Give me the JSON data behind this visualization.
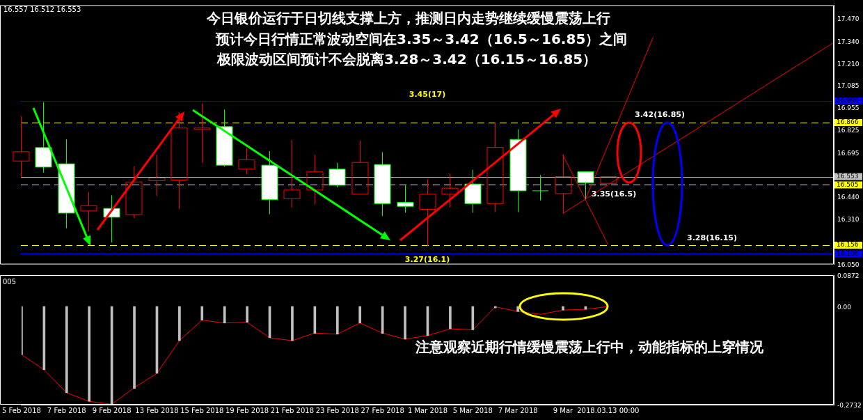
{
  "chart_data": [
    {
      "type": "candlestick",
      "title": "今日银价运行于日切线支撑上方，推测日内走势继续缓慢震荡上行",
      "subtitle": "预计今日行情正常波动空间在3.35～3.42（16.5～16.85）之间",
      "categories": [
        "5 Feb 2018",
        null,
        "7 Feb 2018",
        null,
        "9 Feb 2018",
        null,
        "13 Feb 2018",
        null,
        "15 Feb 2018",
        null,
        "19 Feb 2018",
        null,
        "21 Feb 2018",
        null,
        "23 Feb 2018",
        null,
        "27 Feb 2018",
        null,
        "1 Mar 2018",
        null,
        "5 Mar 2018",
        null,
        "7 Mar 2018",
        null,
        "9 Mar",
        null,
        "2018.03.13 00:00",
        null,
        null,
        null,
        null,
        null,
        null,
        null,
        null,
        null,
        null
      ],
      "ohlc": [
        [
          16.643,
          16.902,
          16.543,
          16.697
        ],
        [
          16.721,
          16.984,
          16.576,
          16.608
        ],
        [
          16.627,
          16.769,
          16.254,
          16.342
        ],
        [
          16.354,
          16.464,
          16.235,
          16.385
        ],
        [
          16.369,
          16.445,
          16.172,
          16.318
        ],
        [
          16.334,
          16.613,
          16.313,
          16.522
        ],
        [
          16.529,
          16.679,
          16.442,
          16.545
        ],
        [
          16.533,
          16.925,
          16.364,
          16.834
        ],
        [
          16.826,
          16.976,
          16.633,
          16.834
        ],
        [
          16.842,
          16.941,
          16.611,
          16.619
        ],
        [
          16.596,
          16.722,
          16.567,
          16.65
        ],
        [
          16.619,
          16.7,
          16.336,
          16.42
        ],
        [
          16.424,
          16.765,
          16.375,
          16.475
        ],
        [
          16.475,
          16.679,
          16.391,
          16.58
        ],
        [
          16.596,
          16.632,
          16.491,
          16.503
        ],
        [
          16.451,
          16.762,
          16.451,
          16.635
        ],
        [
          16.623,
          16.695,
          16.325,
          16.397
        ],
        [
          16.404,
          16.503,
          16.344,
          16.381
        ],
        [
          16.364,
          16.538,
          16.15,
          16.451
        ],
        [
          16.451,
          16.57,
          16.375,
          16.486
        ],
        [
          16.51,
          16.593,
          16.344,
          16.397
        ],
        [
          16.397,
          16.864,
          16.348,
          16.722
        ],
        [
          16.768,
          16.827,
          16.348,
          16.471
        ],
        [
          16.471,
          16.562,
          16.415,
          16.471
        ],
        [
          16.455,
          16.682,
          16.34,
          16.553
        ],
        [
          16.582,
          16.582,
          16.424,
          16.518
        ],
        [
          16.514,
          16.557,
          16.512,
          16.553
        ],
        null,
        null,
        null,
        null,
        null,
        null,
        null,
        null,
        null,
        null
      ],
      "colors": [
        "#ff0000",
        "#ffffff",
        "#ffffff",
        "#ff0000",
        "#ffffff",
        "#ff0000",
        "#ff0000",
        "#ff0000",
        "#ff0000",
        "#ffffff",
        "#ff0000",
        "#ffffff",
        "#ff0000",
        "#ff0000",
        "#ffffff",
        "#ff0000",
        "#ffffff",
        "#ffffff",
        "#ff0000",
        "#ff0000",
        "#ffffff",
        "#ff0000",
        "#ffffff",
        "#00ff00",
        "#ff0000",
        "#ffffff",
        "#ff0000",
        null,
        null,
        null,
        null,
        null,
        null,
        null,
        null,
        null,
        null
      ],
      "series": [
        {
          "type": "line",
          "color": "#ff0000",
          "values": [
            null,
            null,
            null,
            null,
            null,
            null,
            null,
            null,
            null,
            null,
            null,
            null,
            null,
            null,
            null,
            null,
            null,
            null,
            null,
            null,
            null,
            null,
            null,
            null,
            16.34,
            null,
            null,
            null,
            null,
            null,
            null,
            null,
            null,
            null,
            null,
            null,
            17.329
          ]
        },
        {
          "type": "line",
          "color": "#ff0000",
          "values": [
            null,
            null,
            null,
            null,
            null,
            null,
            null,
            null,
            null,
            null,
            null,
            null,
            null,
            null,
            null,
            null,
            null,
            null,
            null,
            null,
            null,
            null,
            null,
            null,
            null,
            16.421,
            null,
            null,
            17.359,
            null,
            null,
            null,
            null,
            null,
            null,
            null,
            null
          ]
        },
        {
          "type": "line",
          "color": "#ff0000",
          "values": [
            null,
            null,
            null,
            null,
            null,
            null,
            null,
            null,
            null,
            null,
            null,
            null,
            null,
            null,
            null,
            null,
            null,
            null,
            null,
            null,
            null,
            null,
            null,
            null,
            16.679,
            null,
            16.16,
            null,
            null,
            null,
            null,
            null,
            null,
            null,
            null,
            null,
            null
          ]
        }
      ],
      "ylim": [
        16.045,
        17.545
      ],
      "yticks": [
        {
          "value": 16.05,
          "label": "16.050"
        },
        {
          "value": 16.31,
          "label": "16.310"
        },
        {
          "value": 16.44,
          "label": "16.440"
        },
        {
          "value": 16.695,
          "label": "16.695"
        },
        {
          "value": 16.825,
          "label": "16.825"
        },
        {
          "value": 16.955,
          "label": "16.955"
        },
        {
          "value": 17.085,
          "label": "17.085"
        },
        {
          "value": 17.21,
          "label": "17.210"
        },
        {
          "value": 17.34,
          "label": "17.340"
        },
        {
          "value": 17.47,
          "label": "17.470"
        }
      ],
      "tick_labels": "y",
      "ref_lines": [
        {
          "axis": "y",
          "value": 16.99,
          "label": "16.990",
          "color": "#0000ff",
          "line_style": "solid"
        },
        {
          "axis": "y",
          "value": 16.866,
          "label": "16.866",
          "color": "#ffff00",
          "line_style": "dashed"
        },
        {
          "axis": "y",
          "value": 16.553,
          "label": "16.553",
          "color": "#c0c0c0",
          "line_style": "solid"
        },
        {
          "axis": "y",
          "value": 16.505,
          "label": "16.505",
          "color": "#ffff00",
          "line_style": "dashed"
        },
        {
          "axis": "y",
          "value": 16.156,
          "label": "16.156",
          "color": "#ffff00",
          "line_style": "dashed"
        },
        {
          "axis": "y",
          "value": 16.106,
          "label": "16.106",
          "color": "#0000ff",
          "line_style": "solid"
        }
      ],
      "annotations": [
        {
          "text": "3.45(17)",
          "x": "1 Mar 2018",
          "y": 16.99
        },
        {
          "text": "3.27(16.1)",
          "x": "1 Mar 2018",
          "y": 16.106
        },
        {
          "text": "3.42(16.85)",
          "y": 16.866
        },
        {
          "text": "3.35(16.5)",
          "y": 16.505
        },
        {
          "text": "3.28(16.15)",
          "y": 16.156
        },
        "极限波动区间预计不会脱离3.28～3.42（16.15～16.85）",
        "16.557 16.512 16.553"
      ]
    },
    {
      "type": "bar",
      "categories": [
        "5 Feb 2018",
        null,
        "7 Feb 2018",
        null,
        "9 Feb 2018",
        null,
        "13 Feb 2018",
        null,
        "15 Feb 2018",
        null,
        "19 Feb 2018",
        null,
        "21 Feb 2018",
        null,
        "23 Feb 2018",
        null,
        "27 Feb 2018",
        null,
        "1 Mar 2018",
        null,
        "5 Mar 2018",
        null,
        "7 Mar 2018",
        null,
        "9 Mar",
        null,
        "2018.03.13 00:00",
        null,
        null,
        null,
        null,
        null,
        null,
        null,
        null,
        null,
        null
      ],
      "series": [
        {
          "type": "bar",
          "color": "#c0c0c0",
          "values": [
            -0.134,
            -0.176,
            -0.24,
            -0.264,
            -0.273,
            -0.228,
            -0.186,
            -0.095,
            -0.038,
            -0.046,
            -0.044,
            -0.087,
            -0.095,
            -0.075,
            -0.077,
            -0.046,
            -0.075,
            -0.091,
            -0.081,
            -0.062,
            -0.065,
            -0.004,
            -0.014,
            null,
            -0.01,
            -0.008,
            null,
            null,
            null,
            null,
            null,
            null,
            null,
            null,
            null,
            null,
            null
          ]
        },
        {
          "type": "line",
          "color": "#ff0000",
          "values": [
            -0.134,
            -0.176,
            -0.24,
            -0.264,
            -0.272,
            -0.226,
            -0.186,
            -0.095,
            -0.038,
            -0.046,
            -0.044,
            -0.087,
            -0.095,
            -0.074,
            -0.077,
            -0.046,
            -0.074,
            -0.091,
            -0.081,
            -0.062,
            -0.065,
            -0.001,
            -0.014,
            -0.022,
            -0.01,
            -0.008,
            0,
            null,
            null,
            null,
            null,
            null,
            null,
            null,
            null,
            null,
            null
          ]
        }
      ],
      "ylim": [
        -0.2732,
        0.0872
      ],
      "yticks": [
        -0.2732,
        {
          "value": 0,
          "label": "0.00"
        },
        0.0872
      ],
      "annotations": [
        "005",
        "注意观察近期行情缓慢震荡上行中，动能指标的上穿情况"
      ]
    }
  ]
}
